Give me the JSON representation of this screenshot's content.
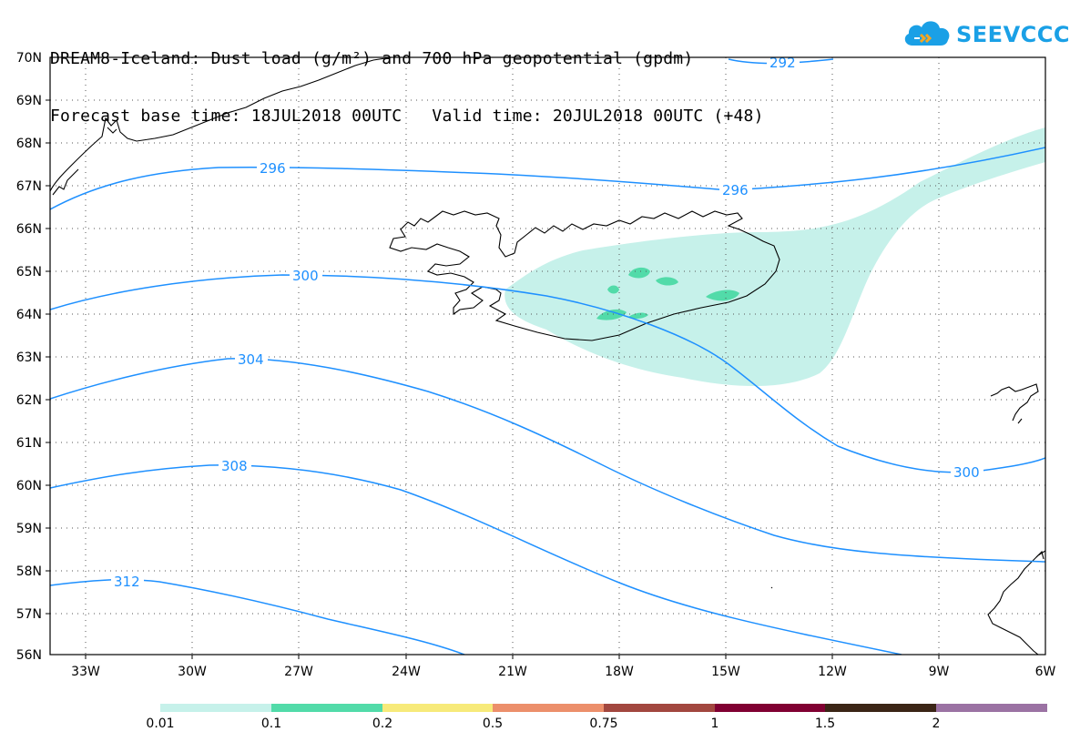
{
  "title": {
    "line1": "DREAM8-Iceland: Dust load (g/m²) and 700 hPa geopotential (gpdm)",
    "line2": "Forecast base time: 18JUL2018 00UTC   Valid time: 20JUL2018 00UTC (+48)"
  },
  "logo": {
    "text": "SEEVCCC",
    "icon": "cloud-icon",
    "color": "#1aa0e6"
  },
  "map": {
    "lat_labels": [
      "70N",
      "69N",
      "68N",
      "67N",
      "66N",
      "65N",
      "64N",
      "63N",
      "62N",
      "61N",
      "60N",
      "59N",
      "58N",
      "57N",
      "56N"
    ],
    "lon_labels": [
      "33W",
      "30W",
      "27W",
      "24W",
      "21W",
      "18W",
      "15W",
      "12W",
      "9W",
      "6W"
    ],
    "lat_range": [
      56,
      70
    ],
    "lon_range": [
      -34.5,
      -6
    ],
    "contour_color": "#1e90ff",
    "contour_labels": [
      "292",
      "296",
      "296",
      "300",
      "300",
      "304",
      "308",
      "312"
    ],
    "dust_colors": {
      "0.01": "#c6f1ea",
      "0.1": "#52dba9"
    }
  },
  "colorbar": {
    "colors": [
      "#c6f1ea",
      "#52dba9",
      "#f7ea7a",
      "#ec8f6b",
      "#a2473f",
      "#800032",
      "#3b2516",
      "#9b72a3"
    ],
    "labels": [
      "0.01",
      "0.1",
      "0.2",
      "0.5",
      "0.75",
      "1",
      "1.5",
      "2"
    ]
  }
}
